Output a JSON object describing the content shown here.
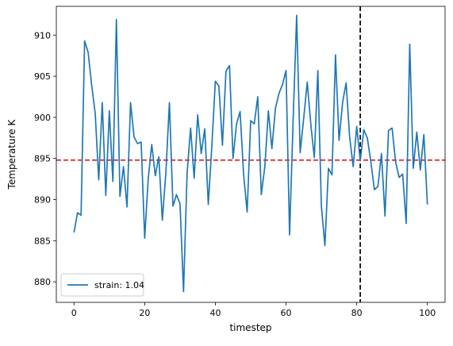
{
  "chart_data": {
    "type": "line",
    "title": "",
    "xlabel": "timestep",
    "ylabel": "Temperature K",
    "xlim": [
      -5,
      105
    ],
    "ylim": [
      877.5,
      913.5
    ],
    "xticks": [
      0,
      20,
      40,
      60,
      80,
      100
    ],
    "xtick_labels": [
      "0",
      "20",
      "40",
      "60",
      "80",
      "100"
    ],
    "yticks": [
      880,
      885,
      890,
      895,
      900,
      905,
      910
    ],
    "ytick_labels": [
      "880",
      "885",
      "890",
      "895",
      "900",
      "905",
      "910"
    ],
    "grid": false,
    "legend": {
      "position": "lower-left",
      "entries": [
        "strain: 1.04"
      ]
    },
    "series": [
      {
        "name": "strain: 1.04",
        "color": "#1f77b4",
        "x": [
          0,
          1,
          2,
          3,
          4,
          5,
          6,
          7,
          8,
          9,
          10,
          11,
          12,
          13,
          14,
          15,
          16,
          17,
          18,
          19,
          20,
          21,
          22,
          23,
          24,
          25,
          26,
          27,
          28,
          29,
          30,
          31,
          32,
          33,
          34,
          35,
          36,
          37,
          38,
          39,
          40,
          41,
          42,
          43,
          44,
          45,
          46,
          47,
          48,
          49,
          50,
          51,
          52,
          53,
          54,
          55,
          56,
          57,
          58,
          59,
          60,
          61,
          62,
          63,
          64,
          65,
          66,
          67,
          68,
          69,
          70,
          71,
          72,
          73,
          74,
          75,
          76,
          77,
          78,
          79,
          80,
          81,
          82,
          83,
          84,
          85,
          86,
          87,
          88,
          89,
          90,
          91,
          92,
          93,
          94,
          95,
          96,
          97,
          98,
          99,
          100
        ],
        "y": [
          886.0,
          888.4,
          888.1,
          909.3,
          907.9,
          903.9,
          900.5,
          892.4,
          901.8,
          890.5,
          900.8,
          892.2,
          911.9,
          890.4,
          894.0,
          889.1,
          901.8,
          897.6,
          896.8,
          897.0,
          885.3,
          892.5,
          896.7,
          892.9,
          895.2,
          887.5,
          893.3,
          901.8,
          889.2,
          890.6,
          889.5,
          878.8,
          893.2,
          898.7,
          892.6,
          900.3,
          895.6,
          898.6,
          889.4,
          896.5,
          904.4,
          903.8,
          896.6,
          905.6,
          906.3,
          895.0,
          899.2,
          900.7,
          893.0,
          888.5,
          899.6,
          899.2,
          902.5,
          890.6,
          894.0,
          900.8,
          896.2,
          901.1,
          902.9,
          904.0,
          905.7,
          885.7,
          899.5,
          912.4,
          895.7,
          899.9,
          904.3,
          899.2,
          895.1,
          905.7,
          889.2,
          884.4,
          893.8,
          893.0,
          907.6,
          897.2,
          901.8,
          904.2,
          897.6,
          894.0,
          898.9,
          894.7,
          898.5,
          897.5,
          894.6,
          891.2,
          891.6,
          895.6,
          888.0,
          898.4,
          898.7,
          894.6,
          892.7,
          893.1,
          887.1,
          908.9,
          893.8,
          898.2,
          893.6,
          897.9,
          889.4
        ]
      }
    ],
    "reference_lines": [
      {
        "orientation": "horizontal",
        "value": 894.8,
        "color": "#d62728",
        "style": "dashed"
      },
      {
        "orientation": "vertical",
        "value": 81,
        "color": "#000000",
        "style": "dashed"
      }
    ]
  }
}
